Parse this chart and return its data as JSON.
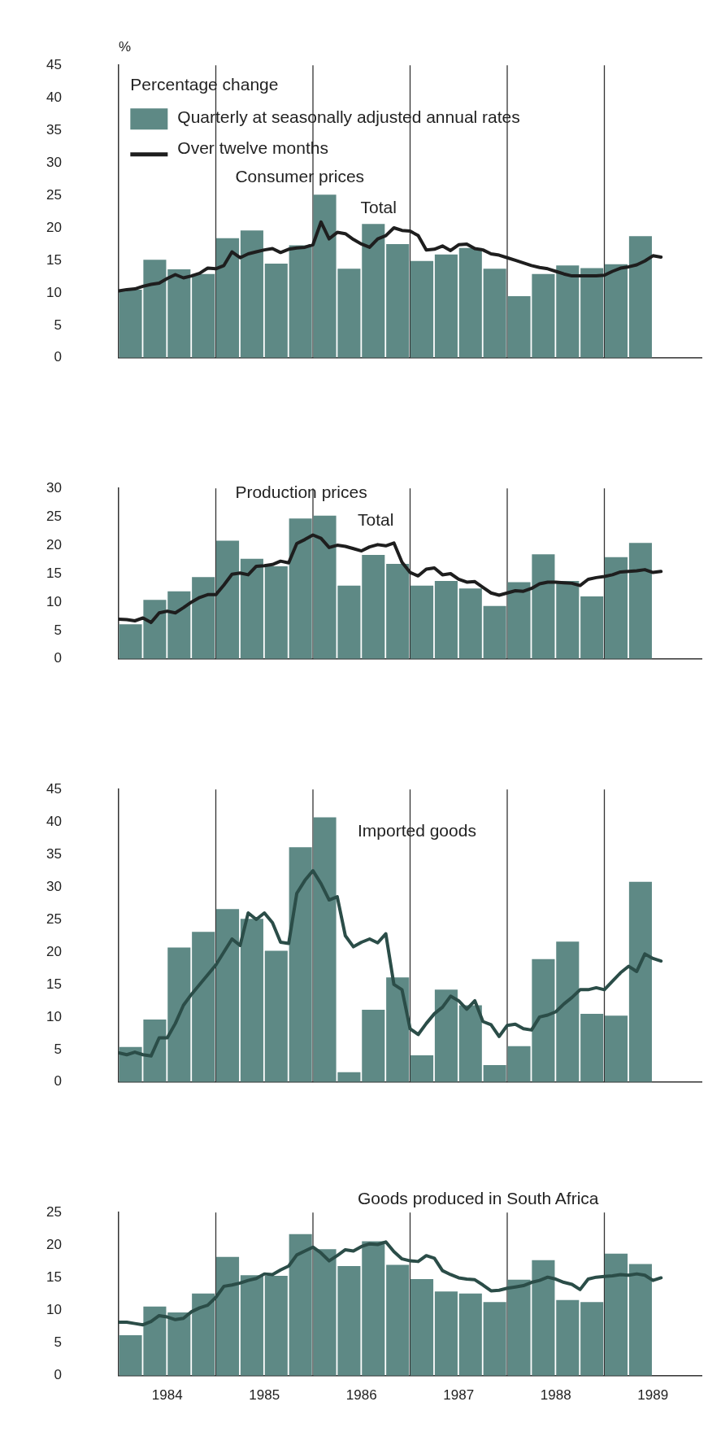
{
  "chart_data": [
    {
      "type": "bar",
      "title": "Consumer prices",
      "subtitle": "Total",
      "ylabel": "%",
      "legend_title": "Percentage change",
      "legend": "top left",
      "tick_labels": "y",
      "xlim": [
        "1984",
        "1990"
      ],
      "ylim": [
        0,
        45
      ],
      "yticks": [
        0,
        5,
        10,
        15,
        20,
        25,
        30,
        35,
        40,
        45
      ],
      "ref_lines": [
        {
          "axis": "x",
          "value": "1985"
        },
        {
          "axis": "x",
          "value": "1986"
        },
        {
          "axis": "x",
          "value": "1987"
        },
        {
          "axis": "x",
          "value": "1988"
        },
        {
          "axis": "x",
          "value": "1989"
        }
      ],
      "series": [
        {
          "name": "Quarterly at seasonally adjusted annual rates",
          "color": "#5e8985",
          "x": [
            "1984-02-15",
            "1984-05-15",
            "1984-08-15",
            "1984-11-15",
            "1985-02-15",
            "1985-05-15",
            "1985-08-15",
            "1985-11-15",
            "1986-02-15",
            "1986-05-15",
            "1986-08-15",
            "1986-11-15",
            "1987-02-15",
            "1987-05-15",
            "1987-08-15",
            "1987-11-15",
            "1988-02-15",
            "1988-05-15",
            "1988-08-15",
            "1988-11-15",
            "1989-02-15",
            "1989-05-15"
          ],
          "values": [
            10.5,
            15.1,
            13.6,
            12.9,
            18.4,
            19.6,
            14.5,
            17.3,
            25.1,
            13.7,
            20.6,
            17.5,
            14.9,
            15.9,
            16.9,
            13.7,
            9.5,
            12.9,
            14.2,
            13.8,
            14.4,
            18.7
          ]
        },
        {
          "type": "line",
          "name": "Over twelve months",
          "color": "#1e1e1e",
          "x": [
            "1984-01",
            "1984-02",
            "1984-03",
            "1984-04",
            "1984-05",
            "1984-06",
            "1984-07",
            "1984-08",
            "1984-09",
            "1984-10",
            "1984-11",
            "1984-12",
            "1985-01",
            "1985-02",
            "1985-03",
            "1985-04",
            "1985-05",
            "1985-06",
            "1985-07",
            "1985-08",
            "1985-09",
            "1985-10",
            "1985-11",
            "1985-12",
            "1986-01",
            "1986-02",
            "1986-03",
            "1986-04",
            "1986-05",
            "1986-06",
            "1986-07",
            "1986-08",
            "1986-09",
            "1986-10",
            "1986-11",
            "1986-12",
            "1987-01",
            "1987-02",
            "1987-03",
            "1987-04",
            "1987-05",
            "1987-06",
            "1987-07",
            "1987-08",
            "1987-09",
            "1987-10",
            "1987-11",
            "1987-12",
            "1988-01",
            "1988-02",
            "1988-03",
            "1988-04",
            "1988-05",
            "1988-06",
            "1988-07",
            "1988-08",
            "1988-09",
            "1988-10",
            "1988-11",
            "1988-12",
            "1989-01",
            "1989-02",
            "1989-03",
            "1989-04",
            "1989-05",
            "1989-06",
            "1989-07",
            "1989-08"
          ],
          "values": [
            10.3,
            10.5,
            10.6,
            11.0,
            11.3,
            11.5,
            12.2,
            12.8,
            12.3,
            12.6,
            13.0,
            13.8,
            13.7,
            14.2,
            16.3,
            15.4,
            16.0,
            16.3,
            16.6,
            16.8,
            16.2,
            16.7,
            16.9,
            17.0,
            17.4,
            20.9,
            18.3,
            19.3,
            19.1,
            18.2,
            17.5,
            17.0,
            18.3,
            18.8,
            20.0,
            19.6,
            19.5,
            18.8,
            16.6,
            16.7,
            17.2,
            16.5,
            17.4,
            17.5,
            16.8,
            16.6,
            16.0,
            15.8,
            15.4,
            15.0,
            14.6,
            14.2,
            13.9,
            13.7,
            13.3,
            12.9,
            12.6,
            12.6,
            12.6,
            12.6,
            12.7,
            13.3,
            13.8,
            14.0,
            14.3,
            14.9,
            15.7,
            15.5
          ]
        }
      ]
    },
    {
      "type": "bar",
      "title": "Production prices",
      "subtitle": "Total",
      "tick_labels": "y",
      "xlim": [
        "1984",
        "1990"
      ],
      "ylim": [
        0,
        30
      ],
      "yticks": [
        0,
        5,
        10,
        15,
        20,
        25,
        30
      ],
      "ref_lines": [
        {
          "axis": "x",
          "value": "1985"
        },
        {
          "axis": "x",
          "value": "1986"
        },
        {
          "axis": "x",
          "value": "1987"
        },
        {
          "axis": "x",
          "value": "1988"
        },
        {
          "axis": "x",
          "value": "1989"
        }
      ],
      "series": [
        {
          "color": "#5e8985",
          "x": [
            "1984-02-15",
            "1984-05-15",
            "1984-08-15",
            "1984-11-15",
            "1985-02-15",
            "1985-05-15",
            "1985-08-15",
            "1985-11-15",
            "1986-02-15",
            "1986-05-15",
            "1986-08-15",
            "1986-11-15",
            "1987-02-15",
            "1987-05-15",
            "1987-08-15",
            "1987-11-15",
            "1988-02-15",
            "1988-05-15",
            "1988-08-15",
            "1988-11-15",
            "1989-02-15",
            "1989-05-15"
          ],
          "values": [
            6.1,
            10.4,
            11.9,
            14.4,
            20.8,
            17.6,
            16.3,
            24.7,
            25.2,
            12.9,
            18.3,
            16.7,
            12.9,
            13.7,
            12.4,
            9.3,
            13.5,
            18.4,
            13.7,
            11.0,
            17.9,
            20.4
          ]
        },
        {
          "type": "line",
          "color": "#1e1e1e",
          "x": [
            "1984-01",
            "1984-02",
            "1984-03",
            "1984-04",
            "1984-05",
            "1984-06",
            "1984-07",
            "1984-08",
            "1984-09",
            "1984-10",
            "1984-11",
            "1984-12",
            "1985-01",
            "1985-02",
            "1985-03",
            "1985-04",
            "1985-05",
            "1985-06",
            "1985-07",
            "1985-08",
            "1985-09",
            "1985-10",
            "1985-11",
            "1985-12",
            "1986-01",
            "1986-02",
            "1986-03",
            "1986-04",
            "1986-05",
            "1986-06",
            "1986-07",
            "1986-08",
            "1986-09",
            "1986-10",
            "1986-11",
            "1986-12",
            "1987-01",
            "1987-02",
            "1987-03",
            "1987-04",
            "1987-05",
            "1987-06",
            "1987-07",
            "1987-08",
            "1987-09",
            "1987-10",
            "1987-11",
            "1987-12",
            "1988-01",
            "1988-02",
            "1988-03",
            "1988-04",
            "1988-05",
            "1988-06",
            "1988-07",
            "1988-08",
            "1988-09",
            "1988-10",
            "1988-11",
            "1988-12",
            "1989-01",
            "1989-02",
            "1989-03",
            "1989-04",
            "1989-05",
            "1989-06",
            "1989-07",
            "1989-08"
          ],
          "values": [
            7.0,
            6.9,
            6.7,
            7.2,
            6.4,
            8.1,
            8.4,
            8.1,
            9.0,
            10.0,
            10.8,
            11.3,
            11.3,
            13.0,
            14.9,
            15.1,
            14.8,
            16.3,
            16.4,
            16.6,
            17.2,
            16.9,
            20.3,
            21.0,
            21.8,
            21.2,
            19.6,
            20.0,
            19.8,
            19.4,
            19.0,
            19.7,
            20.1,
            19.9,
            20.4,
            17.0,
            15.2,
            14.6,
            15.8,
            16.0,
            14.8,
            15.0,
            14.0,
            13.5,
            13.6,
            12.6,
            11.6,
            11.2,
            11.6,
            12.0,
            11.9,
            12.4,
            13.2,
            13.5,
            13.5,
            13.4,
            13.3,
            12.9,
            14.0,
            14.3,
            14.5,
            14.8,
            15.3,
            15.4,
            15.5,
            15.7,
            15.2,
            15.4
          ]
        }
      ]
    },
    {
      "type": "bar",
      "title": "Imported goods",
      "tick_labels": "y",
      "xlim": [
        "1984",
        "1990"
      ],
      "ylim": [
        0,
        45
      ],
      "yticks": [
        0,
        5,
        10,
        15,
        20,
        25,
        30,
        35,
        40,
        45
      ],
      "ref_lines": [
        {
          "axis": "x",
          "value": "1985"
        },
        {
          "axis": "x",
          "value": "1986"
        },
        {
          "axis": "x",
          "value": "1987"
        },
        {
          "axis": "x",
          "value": "1988"
        },
        {
          "axis": "x",
          "value": "1989"
        }
      ],
      "series": [
        {
          "color": "#5e8985",
          "x": [
            "1984-02-15",
            "1984-05-15",
            "1984-08-15",
            "1984-11-15",
            "1985-02-15",
            "1985-05-15",
            "1985-08-15",
            "1985-11-15",
            "1986-02-15",
            "1986-05-15",
            "1986-08-15",
            "1986-11-15",
            "1987-02-15",
            "1987-05-15",
            "1987-08-15",
            "1987-11-15",
            "1988-02-15",
            "1988-05-15",
            "1988-08-15",
            "1988-11-15",
            "1989-02-15",
            "1989-05-15"
          ],
          "values": [
            5.4,
            9.6,
            20.7,
            23.1,
            26.6,
            25.1,
            20.2,
            36.1,
            40.7,
            1.5,
            11.1,
            16.1,
            4.1,
            14.2,
            11.8,
            2.6,
            5.5,
            18.9,
            21.6,
            10.5,
            10.2,
            30.8
          ]
        },
        {
          "type": "line",
          "color": "#2b4d48",
          "x": [
            "1984-01",
            "1984-02",
            "1984-03",
            "1984-04",
            "1984-05",
            "1984-06",
            "1984-07",
            "1984-08",
            "1984-09",
            "1984-10",
            "1984-11",
            "1984-12",
            "1985-01",
            "1985-02",
            "1985-03",
            "1985-04",
            "1985-05",
            "1985-06",
            "1985-07",
            "1985-08",
            "1985-09",
            "1985-10",
            "1985-11",
            "1985-12",
            "1986-01",
            "1986-02",
            "1986-03",
            "1986-04",
            "1986-05",
            "1986-06",
            "1986-07",
            "1986-08",
            "1986-09",
            "1986-10",
            "1986-11",
            "1986-12",
            "1987-01",
            "1987-02",
            "1987-03",
            "1987-04",
            "1987-05",
            "1987-06",
            "1987-07",
            "1987-08",
            "1987-09",
            "1987-10",
            "1987-11",
            "1987-12",
            "1988-01",
            "1988-02",
            "1988-03",
            "1988-04",
            "1988-05",
            "1988-06",
            "1988-07",
            "1988-08",
            "1988-09",
            "1988-10",
            "1988-11",
            "1988-12",
            "1989-01",
            "1989-02",
            "1989-03",
            "1989-04",
            "1989-05",
            "1989-06",
            "1989-07",
            "1989-08"
          ],
          "values": [
            4.5,
            4.2,
            4.6,
            4.2,
            4.0,
            6.8,
            6.8,
            9.0,
            11.8,
            13.5,
            15.0,
            16.5,
            18.0,
            20.0,
            22.0,
            21.0,
            26.0,
            25.0,
            26.0,
            24.5,
            21.5,
            21.3,
            29.0,
            31.0,
            32.5,
            30.5,
            28.0,
            28.5,
            22.5,
            20.8,
            21.5,
            22.0,
            21.4,
            22.8,
            15.0,
            14.2,
            8.2,
            7.3,
            9.0,
            10.5,
            11.5,
            13.2,
            12.5,
            11.2,
            12.5,
            9.3,
            8.8,
            7.0,
            8.7,
            8.9,
            8.2,
            8.0,
            10.0,
            10.3,
            10.8,
            12.0,
            13.0,
            14.2,
            14.2,
            14.5,
            14.2,
            15.5,
            16.8,
            17.8,
            17.0,
            19.7,
            19.0,
            18.6
          ]
        }
      ]
    },
    {
      "type": "bar",
      "title": "Goods produced in South Africa",
      "xlim": [
        "1984",
        "1990"
      ],
      "ylim": [
        0,
        25
      ],
      "yticks": [
        0,
        5,
        10,
        15,
        20,
        25
      ],
      "xticks": [
        {
          "value": "1984-07-01",
          "label": "1984"
        },
        {
          "value": "1985-07-01",
          "label": "1985"
        },
        {
          "value": "1986-07-01",
          "label": "1986"
        },
        {
          "value": "1987-07-01",
          "label": "1987"
        },
        {
          "value": "1988-07-01",
          "label": "1988"
        },
        {
          "value": "1989-07-01",
          "label": "1989"
        }
      ],
      "ref_lines": [
        {
          "axis": "x",
          "value": "1985"
        },
        {
          "axis": "x",
          "value": "1986"
        },
        {
          "axis": "x",
          "value": "1987"
        },
        {
          "axis": "x",
          "value": "1988"
        },
        {
          "axis": "x",
          "value": "1989"
        }
      ],
      "series": [
        {
          "color": "#5e8985",
          "x": [
            "1984-02-15",
            "1984-05-15",
            "1984-08-15",
            "1984-11-15",
            "1985-02-15",
            "1985-05-15",
            "1985-08-15",
            "1985-11-15",
            "1986-02-15",
            "1986-05-15",
            "1986-08-15",
            "1986-11-15",
            "1987-02-15",
            "1987-05-15",
            "1987-08-15",
            "1987-11-15",
            "1988-02-15",
            "1988-05-15",
            "1988-08-15",
            "1988-11-15",
            "1989-02-15",
            "1989-05-15"
          ],
          "values": [
            6.2,
            10.6,
            9.7,
            12.6,
            18.2,
            15.4,
            15.3,
            21.7,
            19.4,
            16.8,
            20.6,
            17.0,
            14.8,
            12.9,
            12.6,
            11.3,
            14.7,
            17.7,
            11.6,
            11.3,
            18.7,
            17.1
          ]
        },
        {
          "type": "line",
          "color": "#2b4d48",
          "x": [
            "1984-01",
            "1984-02",
            "1984-03",
            "1984-04",
            "1984-05",
            "1984-06",
            "1984-07",
            "1984-08",
            "1984-09",
            "1984-10",
            "1984-11",
            "1984-12",
            "1985-01",
            "1985-02",
            "1985-03",
            "1985-04",
            "1985-05",
            "1985-06",
            "1985-07",
            "1985-08",
            "1985-09",
            "1985-10",
            "1985-11",
            "1985-12",
            "1986-01",
            "1986-02",
            "1986-03",
            "1986-04",
            "1986-05",
            "1986-06",
            "1986-07",
            "1986-08",
            "1986-09",
            "1986-10",
            "1986-11",
            "1986-12",
            "1987-01",
            "1987-02",
            "1987-03",
            "1987-04",
            "1987-05",
            "1987-06",
            "1987-07",
            "1987-08",
            "1987-09",
            "1987-10",
            "1987-11",
            "1987-12",
            "1988-01",
            "1988-02",
            "1988-03",
            "1988-04",
            "1988-05",
            "1988-06",
            "1988-07",
            "1988-08",
            "1988-09",
            "1988-10",
            "1988-11",
            "1988-12",
            "1989-01",
            "1989-02",
            "1989-03",
            "1989-04",
            "1989-05",
            "1989-06",
            "1989-07",
            "1989-08"
          ],
          "values": [
            8.2,
            8.2,
            8.0,
            7.8,
            8.3,
            9.2,
            9.0,
            8.6,
            8.8,
            9.8,
            10.4,
            10.8,
            12.0,
            13.7,
            13.9,
            14.2,
            14.6,
            14.9,
            15.6,
            15.5,
            16.2,
            16.8,
            18.5,
            19.1,
            19.7,
            18.8,
            17.6,
            18.4,
            19.3,
            19.1,
            19.8,
            20.2,
            20.1,
            20.5,
            19.0,
            17.9,
            17.6,
            17.5,
            18.4,
            18.0,
            16.1,
            15.5,
            15.0,
            14.8,
            14.7,
            13.9,
            13.0,
            13.1,
            13.4,
            13.6,
            13.8,
            14.3,
            14.6,
            15.1,
            14.8,
            14.3,
            14.0,
            13.2,
            14.8,
            15.1,
            15.2,
            15.3,
            15.5,
            15.4,
            15.6,
            15.4,
            14.6,
            15.0
          ]
        }
      ]
    }
  ]
}
